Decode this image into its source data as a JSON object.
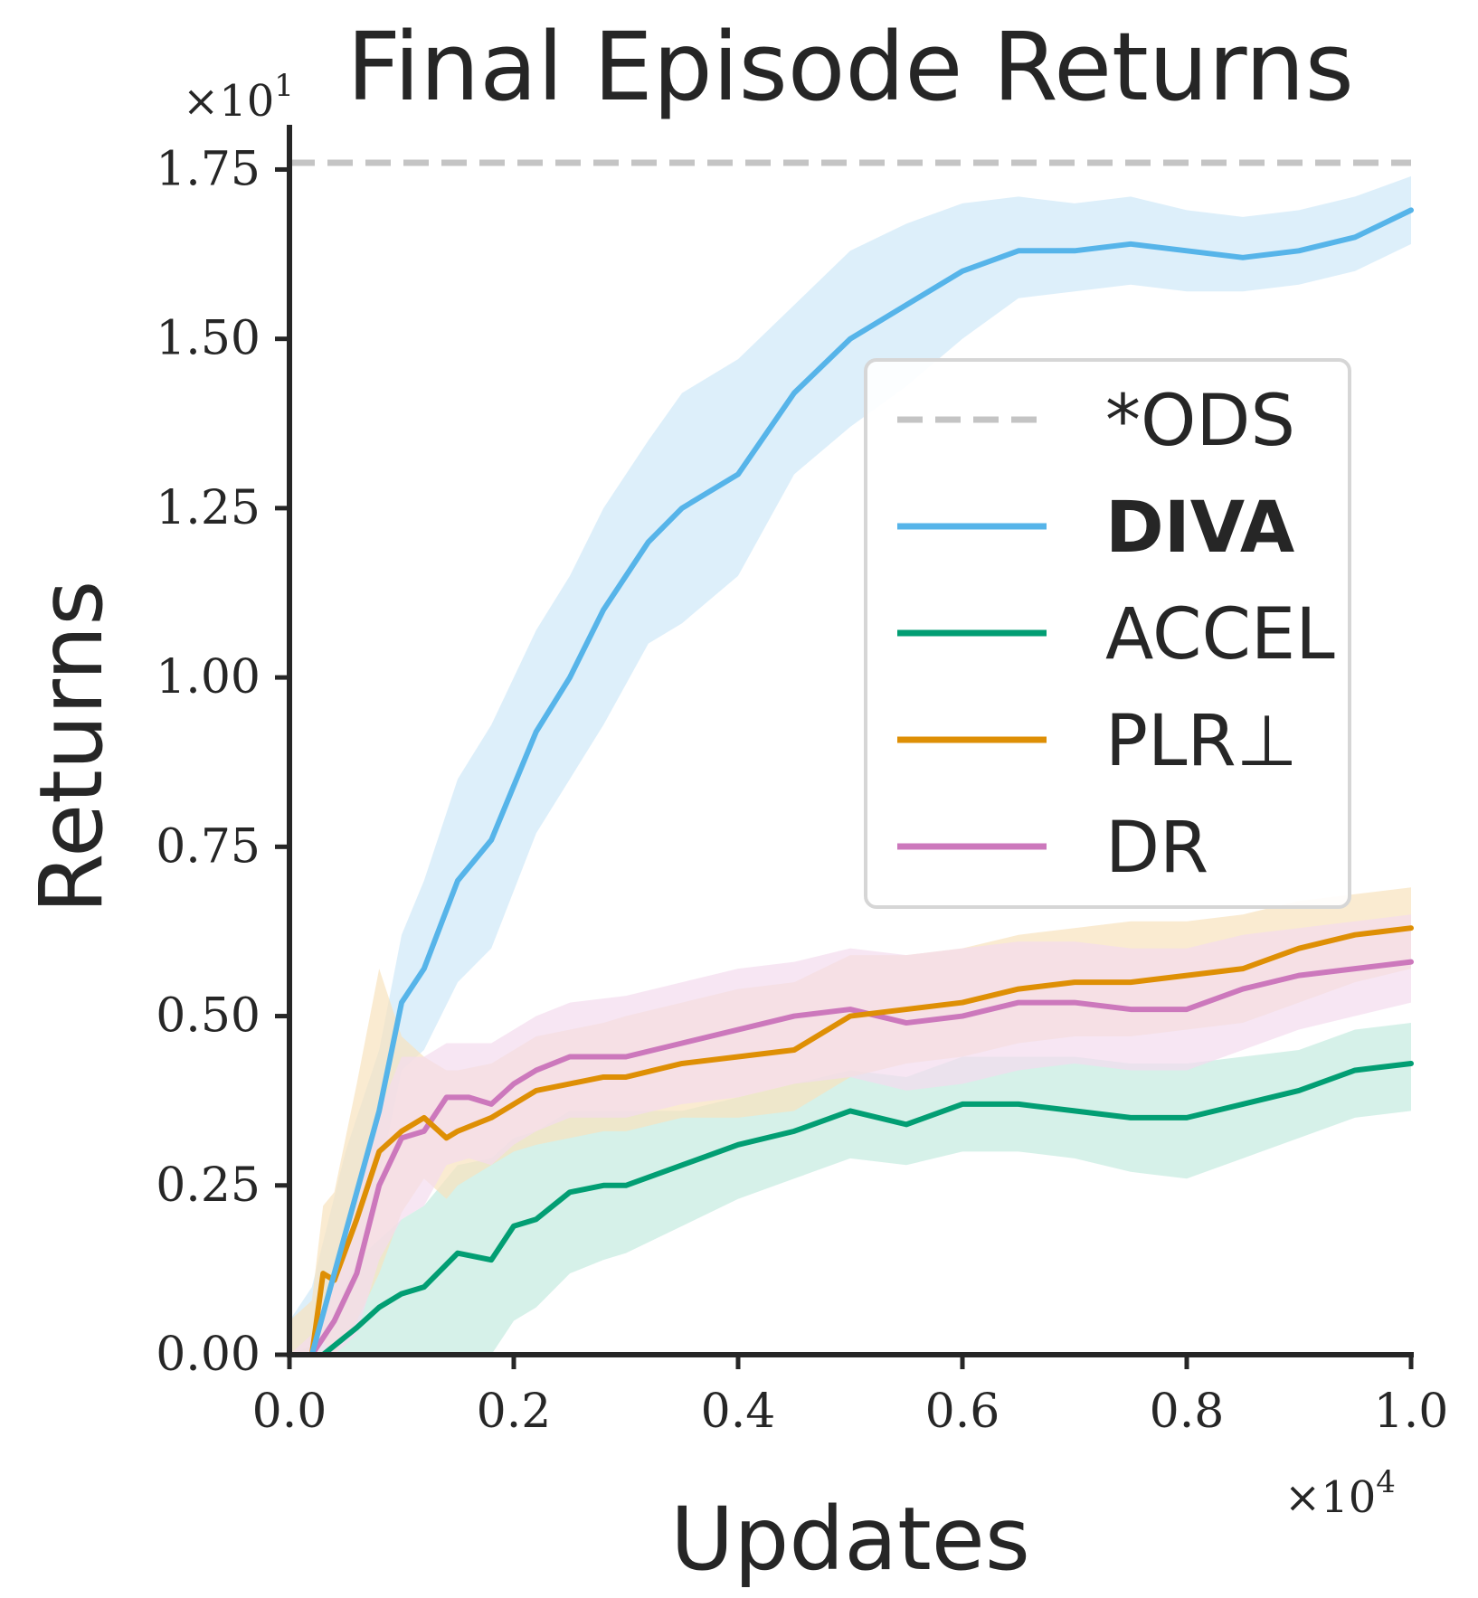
{
  "chart_data": {
    "type": "line",
    "title": "Final Episode Returns",
    "xlabel": "Updates",
    "ylabel": "Returns",
    "x_multiplier": "×10",
    "x_multiplier_exp": "4",
    "y_multiplier": "×10",
    "y_multiplier_exp": "1",
    "xlim": [
      0.0,
      1.0
    ],
    "ylim": [
      0.0,
      1.8
    ],
    "x_ticks": [
      "0.0",
      "0.2",
      "0.4",
      "0.6",
      "0.8",
      "1.0"
    ],
    "y_ticks": [
      "0.00",
      "0.25",
      "0.50",
      "0.75",
      "1.00",
      "1.25",
      "1.50",
      "1.75"
    ],
    "grid": false,
    "legend_position": "center-right",
    "reference_line": {
      "name": "*ODS",
      "y": 1.76,
      "color": "#c4c4c4",
      "style": "dashed"
    },
    "series": [
      {
        "name": "DIVA",
        "bold": true,
        "color": "#56b4e9",
        "band_color": "#cfe8f8",
        "x": [
          0.0,
          0.02,
          0.05,
          0.08,
          0.1,
          0.12,
          0.15,
          0.18,
          0.22,
          0.25,
          0.28,
          0.32,
          0.35,
          0.4,
          0.45,
          0.5,
          0.55,
          0.6,
          0.65,
          0.7,
          0.75,
          0.8,
          0.85,
          0.9,
          0.95,
          1.0
        ],
        "values": [
          0.0,
          0.0,
          0.18,
          0.36,
          0.52,
          0.57,
          0.7,
          0.76,
          0.92,
          1.0,
          1.1,
          1.2,
          1.25,
          1.3,
          1.42,
          1.5,
          1.55,
          1.6,
          1.63,
          1.63,
          1.64,
          1.63,
          1.62,
          1.63,
          1.65,
          1.69
        ],
        "upper": [
          0.05,
          0.1,
          0.3,
          0.45,
          0.62,
          0.7,
          0.85,
          0.93,
          1.07,
          1.15,
          1.25,
          1.35,
          1.42,
          1.47,
          1.55,
          1.63,
          1.67,
          1.7,
          1.71,
          1.7,
          1.71,
          1.69,
          1.68,
          1.69,
          1.71,
          1.74
        ],
        "lower": [
          0.0,
          0.0,
          0.08,
          0.26,
          0.42,
          0.45,
          0.55,
          0.6,
          0.77,
          0.85,
          0.93,
          1.05,
          1.08,
          1.15,
          1.3,
          1.37,
          1.43,
          1.5,
          1.56,
          1.57,
          1.58,
          1.57,
          1.57,
          1.58,
          1.6,
          1.64
        ]
      },
      {
        "name": "ACCEL",
        "bold": false,
        "color": "#029e73",
        "band_color": "#c4ebe0",
        "x": [
          0.0,
          0.03,
          0.06,
          0.08,
          0.1,
          0.12,
          0.15,
          0.18,
          0.2,
          0.22,
          0.25,
          0.28,
          0.3,
          0.35,
          0.4,
          0.45,
          0.5,
          0.55,
          0.6,
          0.65,
          0.7,
          0.75,
          0.8,
          0.85,
          0.9,
          0.95,
          1.0
        ],
        "values": [
          0.0,
          0.0,
          0.04,
          0.07,
          0.09,
          0.1,
          0.15,
          0.14,
          0.19,
          0.2,
          0.24,
          0.25,
          0.25,
          0.28,
          0.31,
          0.33,
          0.36,
          0.34,
          0.37,
          0.37,
          0.36,
          0.35,
          0.35,
          0.37,
          0.39,
          0.42,
          0.43
        ],
        "upper": [
          0.0,
          0.02,
          0.14,
          0.17,
          0.2,
          0.22,
          0.28,
          0.29,
          0.32,
          0.33,
          0.36,
          0.36,
          0.36,
          0.36,
          0.38,
          0.4,
          0.42,
          0.41,
          0.44,
          0.44,
          0.44,
          0.43,
          0.43,
          0.44,
          0.45,
          0.48,
          0.49
        ],
        "lower": [
          0.0,
          0.0,
          0.0,
          0.0,
          0.0,
          0.0,
          0.0,
          0.0,
          0.05,
          0.07,
          0.12,
          0.14,
          0.15,
          0.19,
          0.23,
          0.26,
          0.29,
          0.28,
          0.3,
          0.3,
          0.29,
          0.27,
          0.26,
          0.29,
          0.32,
          0.35,
          0.36
        ]
      },
      {
        "name": "PLR⊥",
        "bold": false,
        "color": "#de8f05",
        "band_color": "#f8e3be",
        "x": [
          0.0,
          0.02,
          0.03,
          0.04,
          0.06,
          0.08,
          0.1,
          0.12,
          0.14,
          0.15,
          0.18,
          0.2,
          0.22,
          0.25,
          0.28,
          0.3,
          0.35,
          0.4,
          0.45,
          0.5,
          0.55,
          0.6,
          0.65,
          0.7,
          0.75,
          0.8,
          0.85,
          0.9,
          0.95,
          1.0
        ],
        "values": [
          0.0,
          0.0,
          0.12,
          0.11,
          0.2,
          0.3,
          0.33,
          0.35,
          0.32,
          0.33,
          0.35,
          0.37,
          0.39,
          0.4,
          0.41,
          0.41,
          0.43,
          0.44,
          0.45,
          0.5,
          0.51,
          0.52,
          0.54,
          0.55,
          0.55,
          0.56,
          0.57,
          0.6,
          0.62,
          0.63
        ],
        "upper": [
          0.05,
          0.08,
          0.22,
          0.24,
          0.4,
          0.57,
          0.47,
          0.44,
          0.42,
          0.42,
          0.43,
          0.45,
          0.47,
          0.48,
          0.49,
          0.5,
          0.52,
          0.54,
          0.55,
          0.59,
          0.59,
          0.6,
          0.62,
          0.63,
          0.64,
          0.64,
          0.65,
          0.67,
          0.68,
          0.69
        ],
        "lower": [
          0.0,
          0.0,
          0.02,
          0.0,
          0.05,
          0.12,
          0.21,
          0.26,
          0.23,
          0.25,
          0.28,
          0.3,
          0.31,
          0.32,
          0.33,
          0.33,
          0.35,
          0.35,
          0.36,
          0.41,
          0.43,
          0.44,
          0.46,
          0.47,
          0.47,
          0.48,
          0.49,
          0.52,
          0.55,
          0.57
        ]
      },
      {
        "name": "DR",
        "bold": false,
        "color": "#cc78bc",
        "band_color": "#f3dcee",
        "x": [
          0.0,
          0.02,
          0.04,
          0.06,
          0.08,
          0.1,
          0.12,
          0.14,
          0.16,
          0.18,
          0.2,
          0.22,
          0.25,
          0.3,
          0.35,
          0.4,
          0.45,
          0.5,
          0.55,
          0.6,
          0.65,
          0.7,
          0.75,
          0.8,
          0.85,
          0.9,
          0.95,
          1.0
        ],
        "values": [
          0.0,
          0.0,
          0.05,
          0.12,
          0.25,
          0.32,
          0.33,
          0.38,
          0.38,
          0.37,
          0.4,
          0.42,
          0.44,
          0.44,
          0.46,
          0.48,
          0.5,
          0.51,
          0.49,
          0.5,
          0.52,
          0.52,
          0.51,
          0.51,
          0.54,
          0.56,
          0.57,
          0.58
        ],
        "upper": [
          0.0,
          0.03,
          0.12,
          0.22,
          0.36,
          0.44,
          0.44,
          0.46,
          0.46,
          0.46,
          0.48,
          0.5,
          0.52,
          0.53,
          0.55,
          0.57,
          0.58,
          0.6,
          0.59,
          0.6,
          0.61,
          0.61,
          0.6,
          0.6,
          0.62,
          0.63,
          0.64,
          0.65
        ],
        "lower": [
          0.0,
          0.0,
          0.0,
          0.03,
          0.14,
          0.2,
          0.22,
          0.28,
          0.29,
          0.28,
          0.31,
          0.33,
          0.35,
          0.35,
          0.37,
          0.38,
          0.4,
          0.41,
          0.39,
          0.4,
          0.42,
          0.43,
          0.42,
          0.42,
          0.45,
          0.48,
          0.5,
          0.52
        ]
      }
    ]
  }
}
